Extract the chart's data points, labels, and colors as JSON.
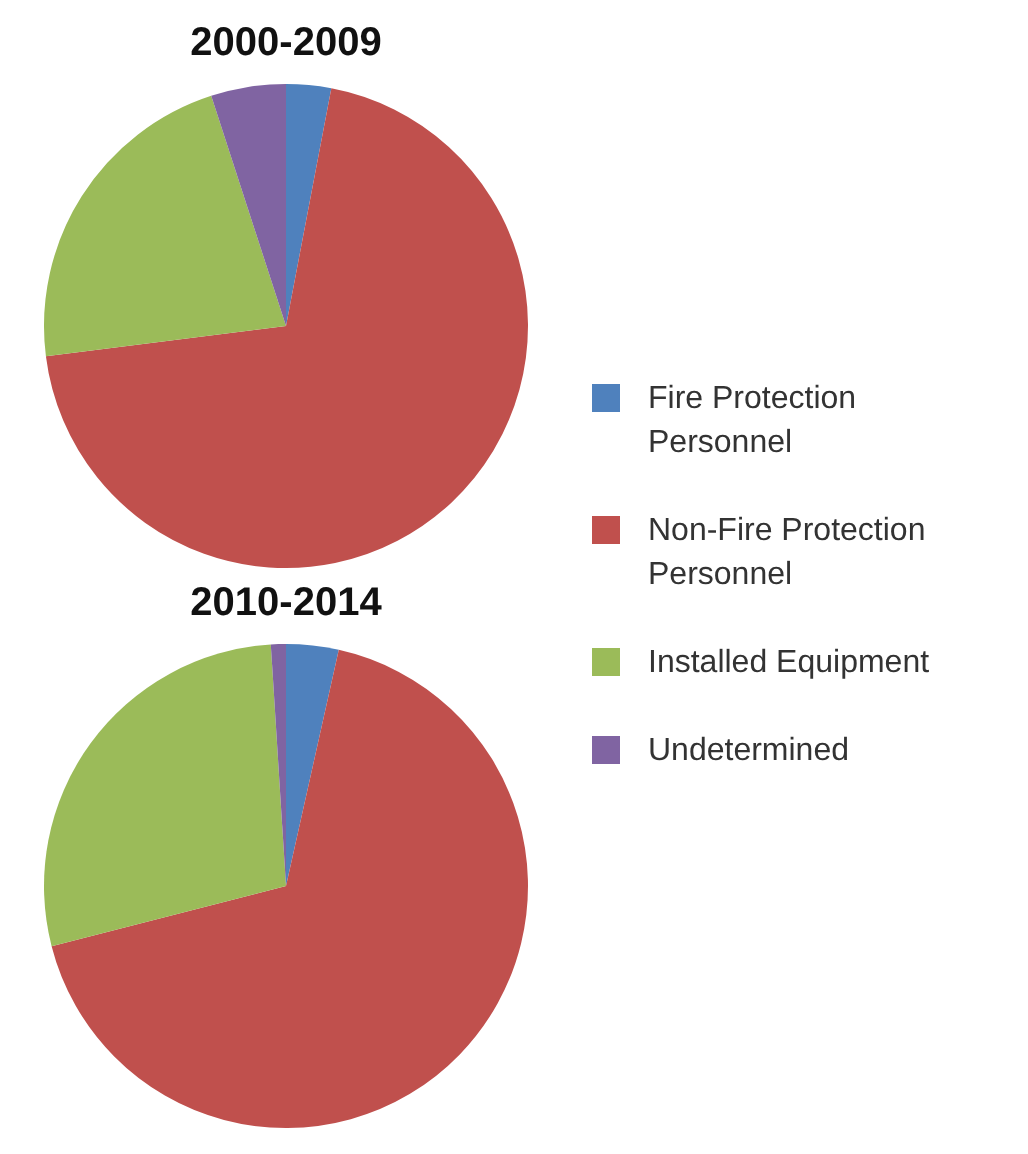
{
  "chart_data": [
    {
      "type": "pie",
      "title": "2000-2009",
      "categories": [
        "Fire Protection Personnel",
        "Non-Fire Protection Personnel",
        "Installed Equipment",
        "Undetermined"
      ],
      "values": [
        3,
        70,
        22,
        5
      ],
      "colors": [
        "#4f81bd",
        "#c0504d",
        "#9bbb59",
        "#8064a2"
      ],
      "legend": "right"
    },
    {
      "type": "pie",
      "title": "2010-2014",
      "categories": [
        null,
        null,
        null,
        null
      ],
      "values": [
        3.5,
        67.5,
        28,
        1
      ],
      "colors": [
        "#4f81bd",
        "#c0504d",
        "#9bbb59",
        "#8064a2"
      ]
    }
  ]
}
